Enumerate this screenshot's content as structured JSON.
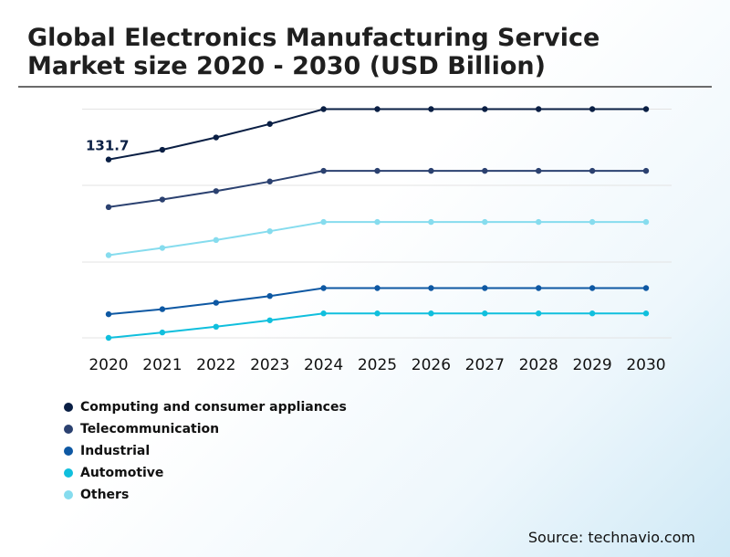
{
  "title_line1": "Global Electronics Manufacturing Service",
  "title_line2": "Market size 2020 - 2030 (USD Billion)",
  "source": "Source: technavio.com",
  "chart_data": {
    "type": "line",
    "x": [
      "2020",
      "2021",
      "2022",
      "2023",
      "2024",
      "2025",
      "2026",
      "2027",
      "2028",
      "2029",
      "2030"
    ],
    "annotation": {
      "text": "131.7",
      "series": "Computing and consumer appliances",
      "index": 0
    },
    "grid": true,
    "legend_placement": "bottom-left",
    "series": [
      {
        "name": "Computing and consumer appliances",
        "color": "#0a1f44",
        "values": [
          131.7,
          137.5,
          144.8,
          152.8,
          161.6,
          161.6,
          161.6,
          161.6,
          161.6,
          161.6,
          161.6
        ]
      },
      {
        "name": "Telecommunication",
        "color": "#2b4170",
        "values": [
          103.5,
          108.0,
          113.0,
          118.7,
          125.0,
          125.0,
          125.0,
          125.0,
          125.0,
          125.0,
          125.0
        ]
      },
      {
        "name": "Industrial",
        "color": "#0e58a3",
        "values": [
          40.0,
          43.0,
          46.8,
          50.8,
          55.5,
          55.5,
          55.5,
          55.5,
          55.5,
          55.5,
          55.5
        ]
      },
      {
        "name": "Automotive",
        "color": "#10bfdd",
        "values": [
          26.0,
          29.2,
          32.6,
          36.4,
          40.5,
          40.5,
          40.5,
          40.5,
          40.5,
          40.5,
          40.5
        ]
      },
      {
        "name": "Others",
        "color": "#86dcee",
        "values": [
          75.0,
          79.3,
          84.0,
          89.2,
          94.7,
          94.7,
          94.7,
          94.7,
          94.7,
          94.7,
          94.7
        ]
      }
    ],
    "legend_order": [
      "Computing and consumer appliances",
      "Telecommunication",
      "Industrial",
      "Automotive",
      "Others"
    ],
    "ylim": [
      26,
      161.6
    ]
  }
}
